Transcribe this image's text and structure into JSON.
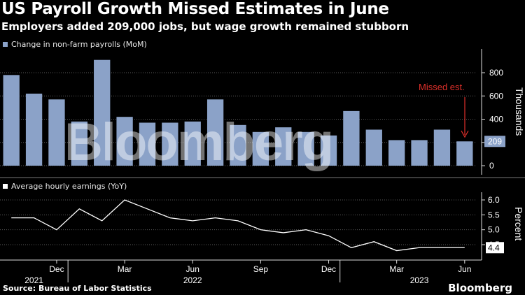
{
  "header": {
    "title": "US Payroll Growth Missed Estimates in June",
    "subtitle": "Employers added 209,000 jobs, but wage growth remained stubborn"
  },
  "footer": {
    "source": "Source: Bureau of Labor Statistics",
    "brand": "Bloomberg"
  },
  "watermark": "Bloomberg",
  "colors": {
    "bar": "#8ba2c8",
    "line": "#ffffff",
    "annotation": "#e0302a",
    "background": "#000000"
  },
  "chart_data": [
    {
      "type": "bar",
      "legend": "Change in non-farm payrolls (MoM)",
      "ylabel": "Thousands",
      "ylim": [
        -100,
        1000
      ],
      "yticks": [
        "0",
        "200",
        "400",
        "600",
        "800"
      ],
      "x": [
        "2021-10",
        "2021-11",
        "2021-12",
        "2022-01",
        "2022-02",
        "2022-03",
        "2022-04",
        "2022-05",
        "2022-06",
        "2022-07",
        "2022-08",
        "2022-09",
        "2022-10",
        "2022-11",
        "2022-12",
        "2023-01",
        "2023-02",
        "2023-03",
        "2023-04",
        "2023-05",
        "2023-06"
      ],
      "values": [
        780,
        620,
        570,
        380,
        910,
        420,
        370,
        370,
        380,
        570,
        350,
        290,
        330,
        290,
        260,
        470,
        310,
        220,
        220,
        310,
        209
      ],
      "last_value_label": "209",
      "annotation": "Missed est."
    },
    {
      "type": "line",
      "legend": "Average hourly earnings (YoY)",
      "ylabel": "Percent",
      "ylim": [
        4.2,
        6.2
      ],
      "yticks": [
        "6.0",
        "5.5",
        "5.0",
        "4.5"
      ],
      "x": [
        "2021-10",
        "2021-11",
        "2021-12",
        "2022-01",
        "2022-02",
        "2022-03",
        "2022-04",
        "2022-05",
        "2022-06",
        "2022-07",
        "2022-08",
        "2022-09",
        "2022-10",
        "2022-11",
        "2022-12",
        "2023-01",
        "2023-02",
        "2023-03",
        "2023-04",
        "2023-05",
        "2023-06"
      ],
      "values": [
        5.4,
        5.4,
        5.0,
        5.7,
        5.3,
        6.0,
        5.7,
        5.4,
        5.3,
        5.4,
        5.3,
        5.0,
        4.9,
        5.0,
        4.8,
        4.4,
        4.6,
        4.3,
        4.4,
        4.4,
        4.4
      ],
      "last_value_label": "4.4"
    }
  ],
  "x_axis": {
    "ticks": [
      {
        "label": "Dec",
        "x": "2021-12"
      },
      {
        "label": "Mar",
        "x": "2022-03"
      },
      {
        "label": "Jun",
        "x": "2022-06"
      },
      {
        "label": "Sep",
        "x": "2022-09"
      },
      {
        "label": "Dec",
        "x": "2022-12"
      },
      {
        "label": "Mar",
        "x": "2023-03"
      },
      {
        "label": "Jun",
        "x": "2023-06"
      }
    ],
    "years": [
      {
        "label": "2021",
        "x": "2021-11"
      },
      {
        "label": "2022",
        "x": "2022-06"
      },
      {
        "label": "2023",
        "x": "2023-04"
      }
    ]
  }
}
